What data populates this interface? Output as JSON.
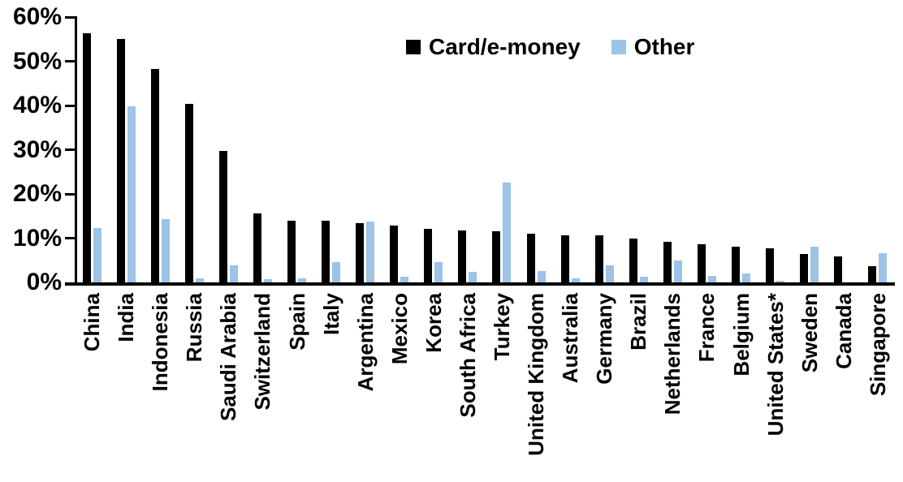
{
  "colors": {
    "card_e_money": "#000000",
    "other": "#9DC3E6",
    "axis": "#000000",
    "background": "#FFFFFF"
  },
  "chart_data": {
    "type": "bar",
    "title": "",
    "xlabel": "",
    "ylabel": "",
    "ylim": [
      0,
      60
    ],
    "yticks": [
      0,
      10,
      20,
      30,
      40,
      50,
      60
    ],
    "ytick_labels": [
      "0%",
      "10%",
      "20%",
      "30%",
      "40%",
      "50%",
      "60%"
    ],
    "grid": false,
    "legend_position": "top-center",
    "categories": [
      "China",
      "India",
      "Indonesia",
      "Russia",
      "Saudi Arabia",
      "Switzerland",
      "Spain",
      "Italy",
      "Argentina",
      "Mexico",
      "Korea",
      "South Africa",
      "Turkey",
      "United Kingdom",
      "Australia",
      "Germany",
      "Brazil",
      "Netherlands",
      "France",
      "Belgium",
      "United States*",
      "Sweden",
      "Canada",
      "Singapore"
    ],
    "series": [
      {
        "name": "Card/e-money",
        "color": "#000000",
        "values": [
          56.3,
          55.0,
          48.3,
          40.4,
          29.8,
          15.6,
          14.0,
          13.9,
          13.4,
          12.9,
          12.2,
          11.7,
          11.6,
          11.1,
          10.7,
          10.7,
          10.0,
          9.2,
          8.6,
          8.1,
          7.8,
          6.4,
          5.9,
          3.7
        ]
      },
      {
        "name": "Other",
        "color": "#9DC3E6",
        "values": [
          12.3,
          39.8,
          14.4,
          0.9,
          3.8,
          0.7,
          0.9,
          4.5,
          13.7,
          1.3,
          4.6,
          2.4,
          22.6,
          2.5,
          1.0,
          3.9,
          1.2,
          4.9,
          1.5,
          2.0,
          0.3,
          8.1,
          0.0,
          6.6
        ]
      }
    ]
  }
}
